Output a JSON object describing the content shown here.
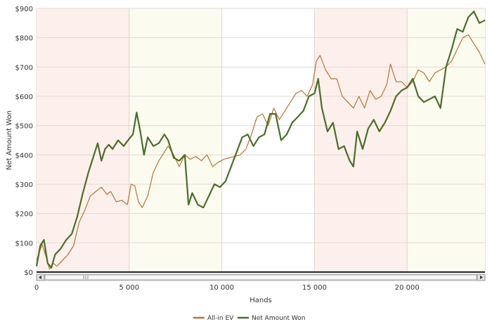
{
  "chart_data": {
    "type": "line",
    "title": "",
    "xlabel": "Hands",
    "ylabel": "Net Amount Won",
    "xlim": [
      0,
      24200
    ],
    "ylim": [
      0,
      900
    ],
    "x_ticks": [
      0,
      5000,
      10000,
      15000,
      20000
    ],
    "x_tick_labels": [
      "0",
      "5 000",
      "10 000",
      "15 000",
      "20 000"
    ],
    "y_ticks": [
      0,
      100,
      200,
      300,
      400,
      500,
      600,
      700,
      800,
      900
    ],
    "y_tick_labels": [
      "$0",
      "$100",
      "$200",
      "$300",
      "$400",
      "$500",
      "$600",
      "$700",
      "$800",
      "$900"
    ],
    "grid": true,
    "legend_position": "bottom-center",
    "series": [
      {
        "name": "All-in EV",
        "color": "#b87333",
        "x": [
          0,
          300,
          500,
          700,
          900,
          1100,
          1400,
          1700,
          2000,
          2300,
          2600,
          2900,
          3200,
          3500,
          3800,
          4000,
          4300,
          4600,
          4900,
          5100,
          5300,
          5500,
          5700,
          6000,
          6300,
          6600,
          6900,
          7100,
          7400,
          7700,
          8000,
          8300,
          8600,
          8900,
          9200,
          9500,
          9800,
          10100,
          10400,
          10700,
          11000,
          11300,
          11600,
          11900,
          12200,
          12500,
          12800,
          13100,
          13400,
          13700,
          14000,
          14300,
          14600,
          14900,
          15100,
          15300,
          15600,
          15900,
          16200,
          16500,
          16800,
          17100,
          17400,
          17700,
          18000,
          18300,
          18600,
          18900,
          19100,
          19400,
          19700,
          20000,
          20300,
          20600,
          20900,
          21200,
          21500,
          21800,
          22100,
          22400,
          22700,
          23000,
          23300,
          23600,
          23900,
          24200
        ],
        "y": [
          40,
          95,
          55,
          10,
          30,
          20,
          40,
          60,
          90,
          170,
          210,
          260,
          275,
          290,
          265,
          275,
          240,
          245,
          230,
          300,
          295,
          240,
          220,
          260,
          340,
          380,
          410,
          430,
          400,
          360,
          400,
          385,
          395,
          380,
          400,
          360,
          375,
          385,
          390,
          395,
          400,
          420,
          470,
          530,
          540,
          500,
          560,
          520,
          550,
          580,
          610,
          620,
          600,
          640,
          720,
          740,
          690,
          660,
          660,
          600,
          580,
          560,
          600,
          560,
          620,
          590,
          600,
          640,
          710,
          650,
          650,
          630,
          650,
          690,
          680,
          650,
          680,
          690,
          700,
          720,
          760,
          800,
          810,
          780,
          750,
          710
        ]
      },
      {
        "name": "Net Amount Won",
        "color": "#4a6e28",
        "x": [
          0,
          200,
          400,
          600,
          800,
          1000,
          1300,
          1600,
          1900,
          2200,
          2500,
          2800,
          3100,
          3300,
          3500,
          3700,
          3900,
          4100,
          4400,
          4700,
          5000,
          5200,
          5400,
          5600,
          5800,
          6000,
          6300,
          6600,
          6900,
          7100,
          7400,
          7700,
          8000,
          8200,
          8400,
          8700,
          9000,
          9300,
          9600,
          9900,
          10200,
          10500,
          10800,
          11100,
          11400,
          11700,
          12000,
          12300,
          12600,
          12900,
          13200,
          13500,
          13800,
          14100,
          14400,
          14700,
          15000,
          15200,
          15400,
          15700,
          16000,
          16300,
          16600,
          16900,
          17100,
          17300,
          17600,
          17900,
          18200,
          18500,
          18800,
          19100,
          19400,
          19700,
          20000,
          20300,
          20600,
          20900,
          21200,
          21500,
          21800,
          22100,
          22400,
          22700,
          23000,
          23300,
          23600,
          23900,
          24200
        ],
        "y": [
          20,
          90,
          110,
          30,
          15,
          60,
          80,
          110,
          130,
          190,
          270,
          340,
          400,
          440,
          380,
          420,
          435,
          420,
          450,
          430,
          455,
          470,
          545,
          480,
          400,
          460,
          430,
          440,
          470,
          450,
          390,
          380,
          400,
          230,
          270,
          230,
          220,
          260,
          300,
          290,
          310,
          360,
          410,
          460,
          470,
          430,
          460,
          470,
          540,
          540,
          450,
          470,
          510,
          530,
          550,
          600,
          610,
          660,
          560,
          480,
          510,
          420,
          430,
          380,
          360,
          480,
          420,
          490,
          520,
          480,
          510,
          550,
          600,
          620,
          630,
          660,
          600,
          580,
          590,
          600,
          560,
          700,
          760,
          830,
          820,
          870,
          890,
          850,
          860
        ]
      }
    ]
  }
}
